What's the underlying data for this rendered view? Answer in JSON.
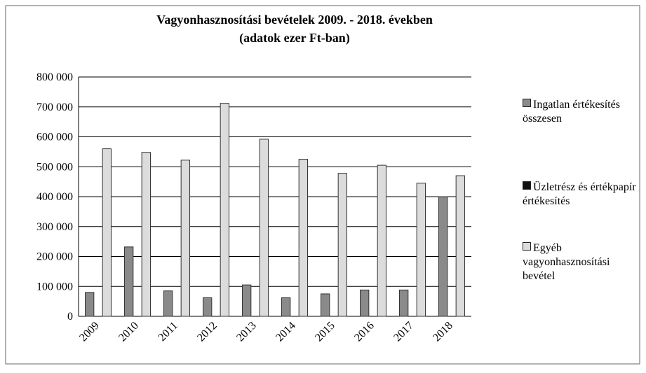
{
  "chart_data": {
    "type": "bar",
    "title": "Vagyonhasznosítási bevételek 2009. - 2018. években",
    "subtitle": "(adatok ezer Ft-ban)",
    "categories": [
      "2009",
      "2010",
      "2011",
      "2012",
      "2013",
      "2014",
      "2015",
      "2016",
      "2017",
      "2018"
    ],
    "series": [
      {
        "name": "Ingatlan értékesítés összesen",
        "color": "#8a8a8a",
        "values": [
          80000,
          232000,
          85000,
          62000,
          105000,
          62000,
          75000,
          88000,
          88000,
          400000
        ]
      },
      {
        "name": "Üzletrész és értékpapír értékesítés",
        "color": "#111111",
        "values": [
          0,
          0,
          0,
          0,
          0,
          0,
          0,
          0,
          0,
          0
        ]
      },
      {
        "name": "Egyéb vagyonhasznosítási bevétel",
        "color": "#dcdcdc",
        "values": [
          560000,
          548000,
          522000,
          712000,
          592000,
          525000,
          478000,
          505000,
          445000,
          470000
        ]
      }
    ],
    "ylim": [
      0,
      800000
    ],
    "yticks": [
      0,
      {
        "value": 100000,
        "label": "100 000"
      },
      {
        "value": 200000,
        "label": "200 000"
      },
      {
        "value": 300000,
        "label": "300 000"
      },
      {
        "value": 400000,
        "label": "400 000"
      },
      {
        "value": 500000,
        "label": "500 000"
      },
      {
        "value": 600000,
        "label": "600 000"
      },
      {
        "value": 700000,
        "label": "700 000"
      },
      {
        "value": 800000,
        "label": "800 000"
      }
    ],
    "grid": true
  }
}
